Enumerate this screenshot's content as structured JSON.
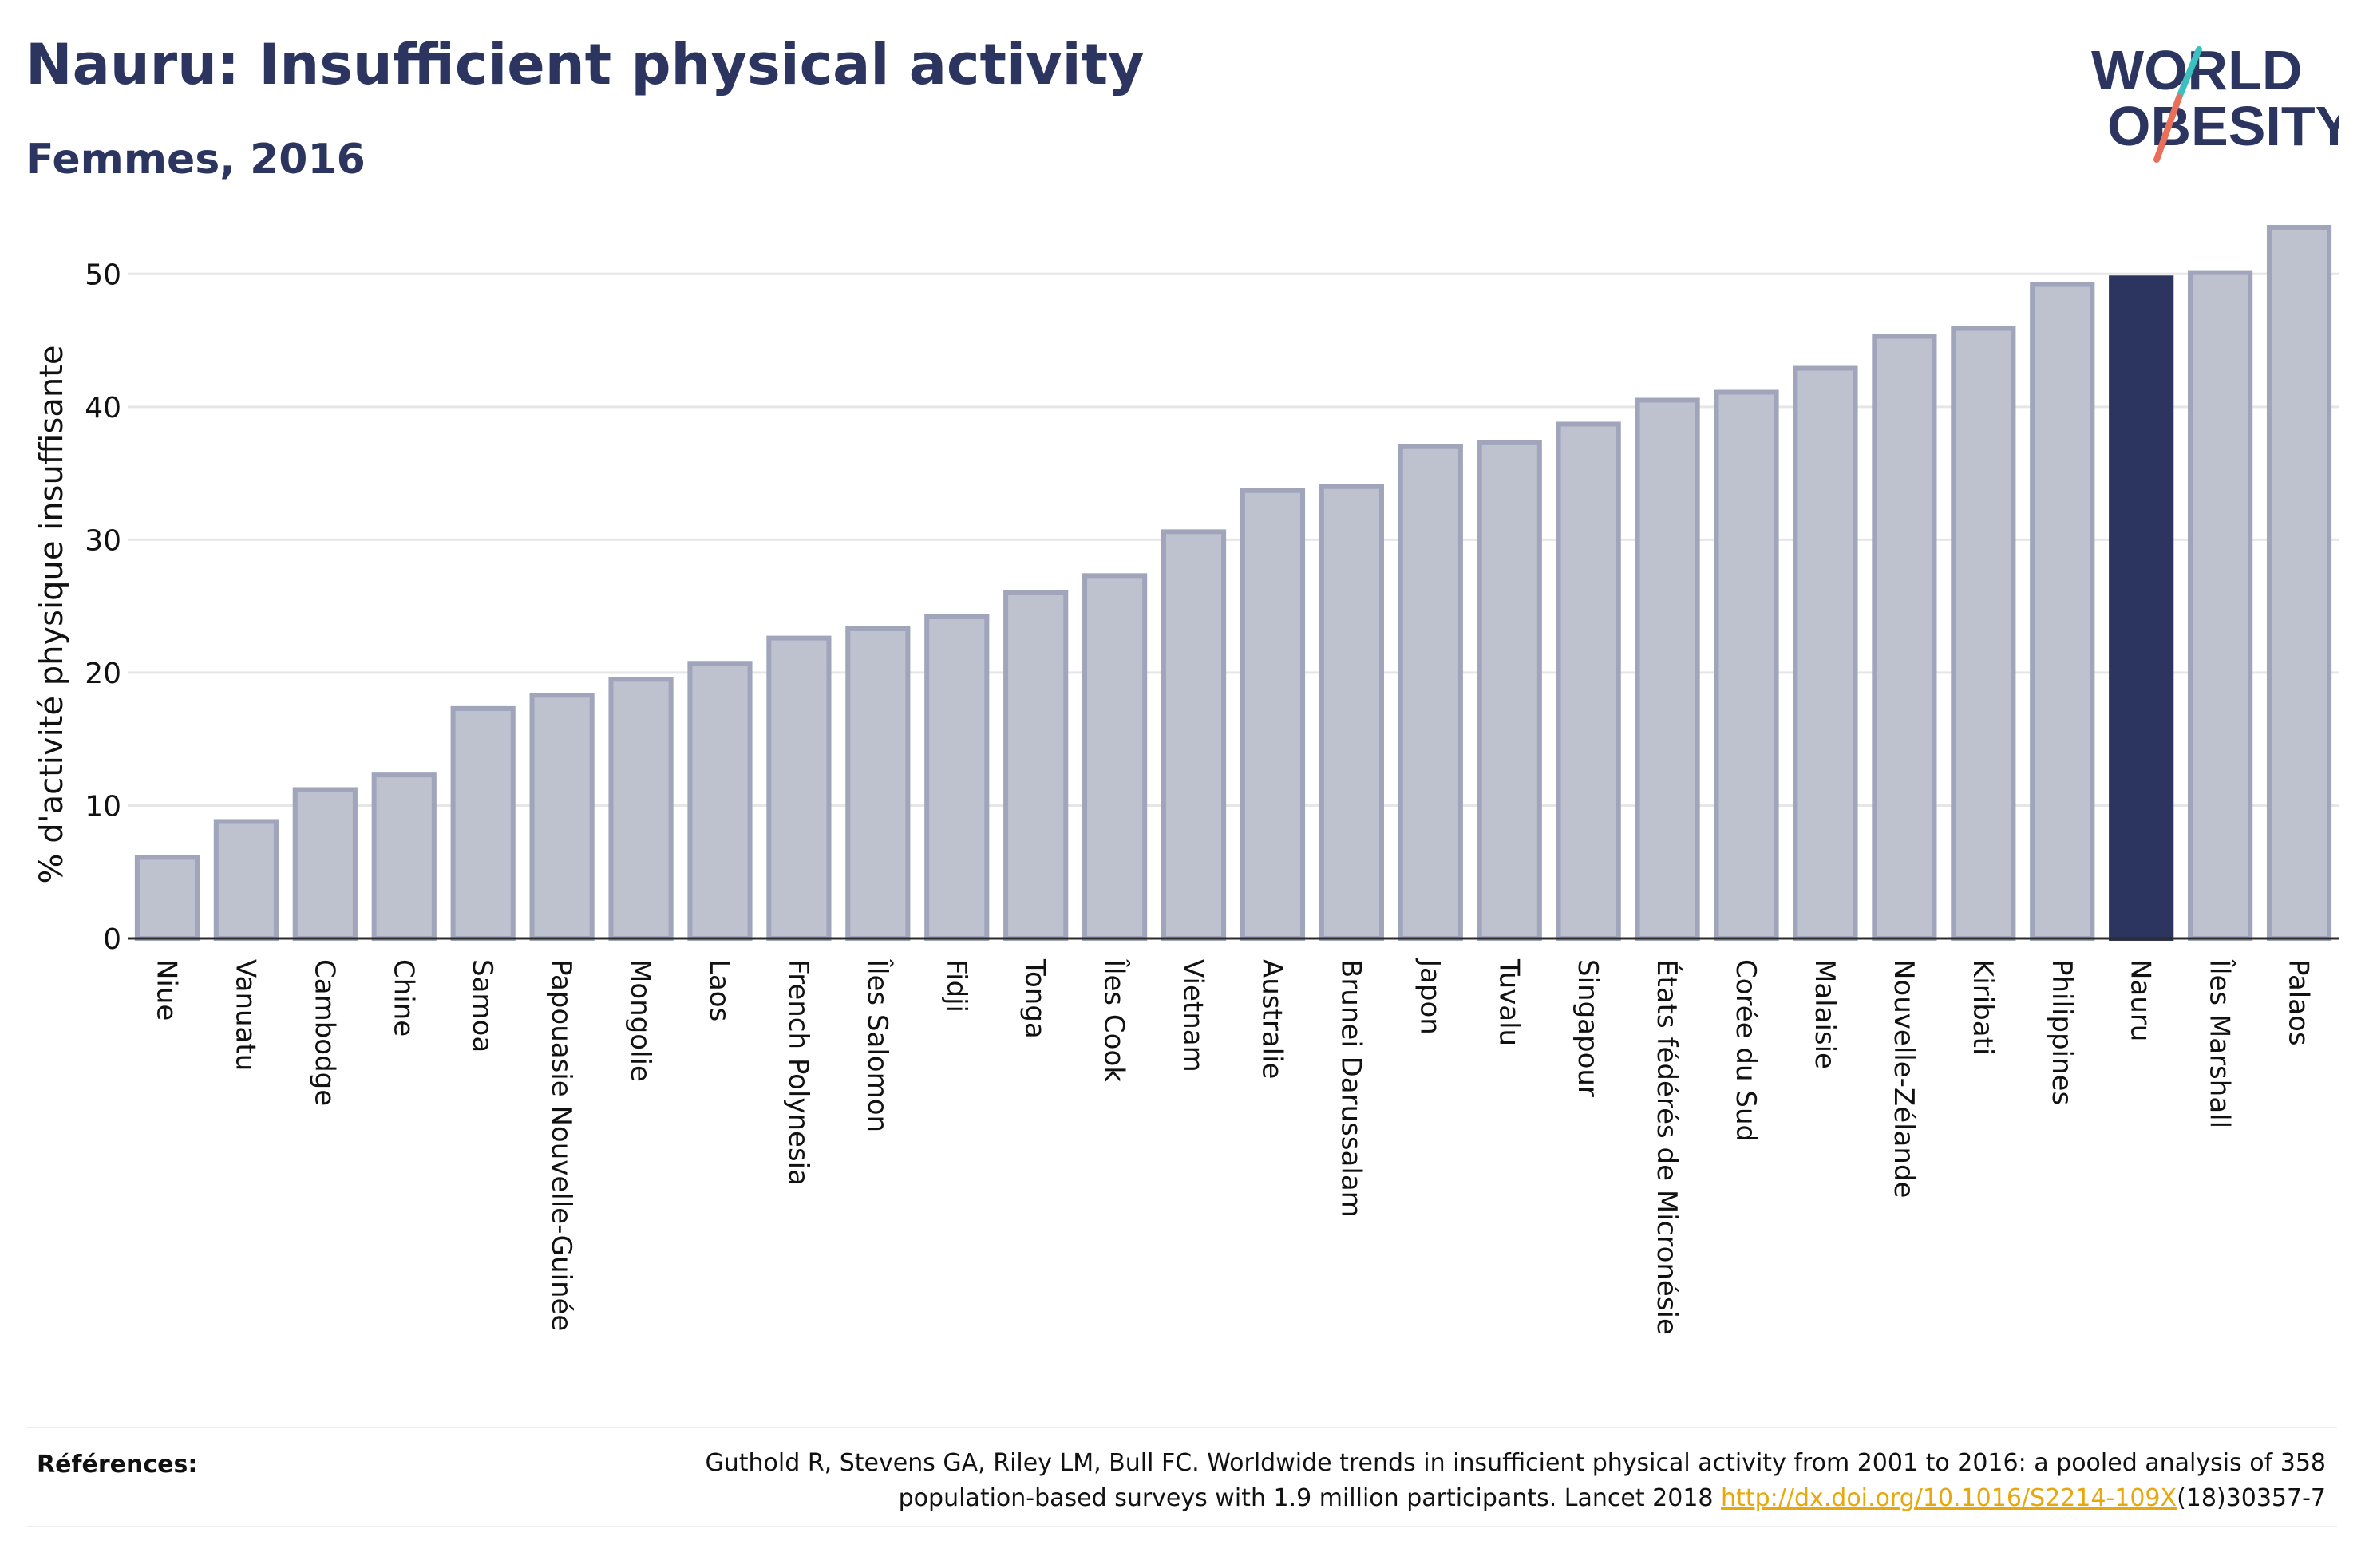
{
  "header": {
    "title": "Nauru: Insufficient physical activity",
    "subtitle": "Femmes, 2016"
  },
  "logo": {
    "line1": "WORLD",
    "line2": "OBESITY",
    "colors": {
      "text": "#2b3560",
      "slash_teal": "#3bbfbf",
      "slash_coral": "#e8705a"
    }
  },
  "colors": {
    "bar_fill": "#bec1ce",
    "bar_stroke": "#a0a5bc",
    "highlight": "#2b3560",
    "grid": "#e6e6e6",
    "axis": "#2b2b2b"
  },
  "chart_data": {
    "type": "bar",
    "title": "",
    "xlabel": "",
    "ylabel": "% d'activité physique insuffisante",
    "ylim": [
      0,
      55
    ],
    "yticks": [
      0,
      10,
      20,
      30,
      40,
      50
    ],
    "grid": true,
    "highlight_category": "Nauru",
    "categories": [
      "Niue",
      "Vanuatu",
      "Cambodge",
      "Chine",
      "Samoa",
      "Papouasie Nouvelle-Guinée",
      "Mongolie",
      "Laos",
      "French Polynesia",
      "Îles Salomon",
      "Fidji",
      "Tonga",
      "Îles Cook",
      "Vietnam",
      "Australie",
      "Brunei Darussalam",
      "Japon",
      "Tuvalu",
      "Singapour",
      "États fédérés de Micronésie",
      "Corée du Sud",
      "Malaisie",
      "Nouvelle-Zélande",
      "Kiribati",
      "Philippines",
      "Nauru",
      "Îles Marshall",
      "Palaos"
    ],
    "values": [
      6.1,
      8.8,
      11.2,
      12.3,
      17.3,
      18.3,
      19.5,
      20.7,
      22.6,
      23.3,
      24.2,
      26.0,
      27.3,
      30.6,
      33.7,
      34.0,
      37.0,
      37.3,
      38.7,
      40.5,
      41.1,
      42.9,
      45.3,
      45.9,
      49.2,
      49.7,
      50.1,
      53.5
    ]
  },
  "footer": {
    "label": "Références:",
    "citation_line1": "Guthold R, Stevens GA, Riley LM, Bull FC. Worldwide trends in insufficient physical activity from 2001 to 2016: a pooled analysis of 358",
    "citation_line2_prefix": "population-based surveys with 1.9 million participants. Lancet 2018 ",
    "citation_link": "http://dx.doi.org/10.1016/S2214-109X",
    "citation_line2_suffix": "(18)30357-7"
  }
}
